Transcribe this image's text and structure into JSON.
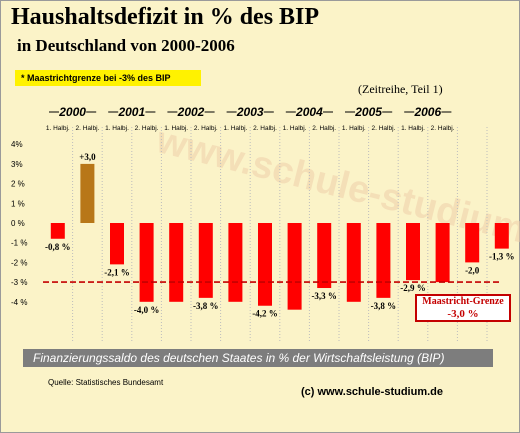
{
  "header": {
    "title": "Haushaltsdefizit in % des BIP",
    "subtitle": "in Deutschland von 2000-2006",
    "note": "* Maastrichtgrenze bei -3% des BIP",
    "series_note": "(Zeitreihe, Teil 1)"
  },
  "footer": {
    "caption": "Finanzierungssaldo des deutschen Staates in % der Wirtschaftsleistung (BIP)",
    "source": "Quelle: Statistisches Bundesamt",
    "copyright": "(c) www.schule-studium.de",
    "watermark": "www.schule-studium.de"
  },
  "limit": {
    "label": "Maastricht-Grenze",
    "value_label": "-3,0 %",
    "value": -3.0
  },
  "colors": {
    "negative": "#ff0000",
    "positive": "#b87718",
    "limit_line": "#c40000",
    "background": "#fbf3c8"
  },
  "chart_data": {
    "type": "bar",
    "years": [
      "2000",
      "2001",
      "2002",
      "2003",
      "2004",
      "2005",
      "2006"
    ],
    "halves": [
      "1. Halbj.",
      "2. Halbj."
    ],
    "values": [
      -0.8,
      3.0,
      -2.1,
      -4.0,
      -4.0,
      -3.8,
      -4.0,
      -4.2,
      -4.4,
      -3.3,
      -4.0,
      -3.8,
      -2.9,
      -3.0,
      -2.0,
      -1.3
    ],
    "value_labels": [
      "-0,8 %",
      "+3,0",
      "-2,1 %",
      "-4,0 %",
      "",
      "-3,8 %",
      "",
      "-4,2 %",
      "",
      "-3,3 %",
      "",
      "-3,8 %",
      "-2,9 %",
      "",
      "-2,0",
      "-1,3 %"
    ],
    "y_ticks": [
      4,
      3,
      2,
      1,
      0,
      -1,
      -2,
      -3,
      -4
    ],
    "y_tick_labels": [
      "4%",
      "3%",
      "2 %",
      "1 %",
      "0 %",
      "-1 %",
      "-2 %",
      "-3 %",
      "-4 %"
    ],
    "ylim": [
      -4.5,
      4.3
    ],
    "grid": "vertical dotted lines between periods"
  }
}
